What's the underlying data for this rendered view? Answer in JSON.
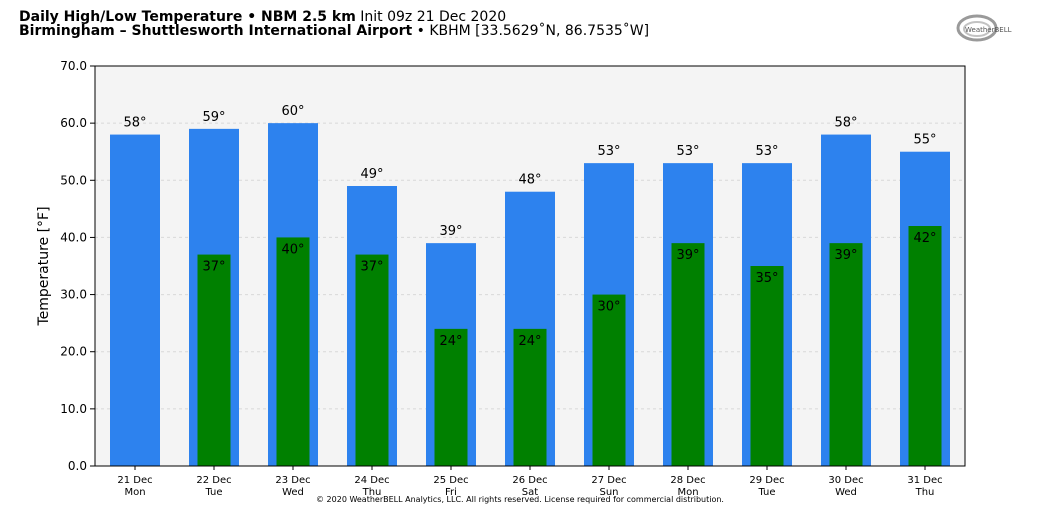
{
  "header": {
    "title_bold": "Daily High/Low Temperature • NBM 2.5 km",
    "title_init": "Init 09z 21 Dec 2020",
    "location_bold": "Birmingham – Shuttlesworth International Airport",
    "location_rest": "• KBHM [33.5629˚N, 86.7535˚W]"
  },
  "logo": {
    "text": "WeatherBELL"
  },
  "copyright": "© 2020 WeatherBELL Analytics, LLC. All rights reserved. License required for commercial distribution.",
  "colors": {
    "high": "#2d82ee",
    "low": "#008000",
    "plot_bg": "#f4f4f4"
  },
  "chart_data": {
    "type": "bar",
    "categories": [
      "21 Dec",
      "22 Dec",
      "23 Dec",
      "24 Dec",
      "25 Dec",
      "26 Dec",
      "27 Dec",
      "28 Dec",
      "29 Dec",
      "30 Dec",
      "31 Dec"
    ],
    "weekdays": [
      "Mon",
      "Tue",
      "Wed",
      "Thu",
      "Fri",
      "Sat",
      "Sun",
      "Mon",
      "Tue",
      "Wed",
      "Thu"
    ],
    "series": [
      {
        "values": [
          58,
          59,
          60,
          49,
          39,
          48,
          53,
          53,
          53,
          58,
          55
        ],
        "labels": [
          "58°",
          "59°",
          "60°",
          "49°",
          "39°",
          "48°",
          "53°",
          "53°",
          "53°",
          "58°",
          "55°"
        ]
      },
      {
        "values": [
          null,
          37,
          40,
          37,
          24,
          24,
          30,
          39,
          35,
          39,
          42
        ],
        "labels": [
          "",
          "37°",
          "40°",
          "37°",
          "24°",
          "24°",
          "30°",
          "39°",
          "35°",
          "39°",
          "42°"
        ]
      }
    ],
    "ylabel": "Temperature [°F]",
    "ylim": [
      0,
      70
    ],
    "yticks": [
      "0.0",
      "10.0",
      "20.0",
      "30.0",
      "40.0",
      "50.0",
      "60.0",
      "70.0"
    ],
    "grid": true
  }
}
